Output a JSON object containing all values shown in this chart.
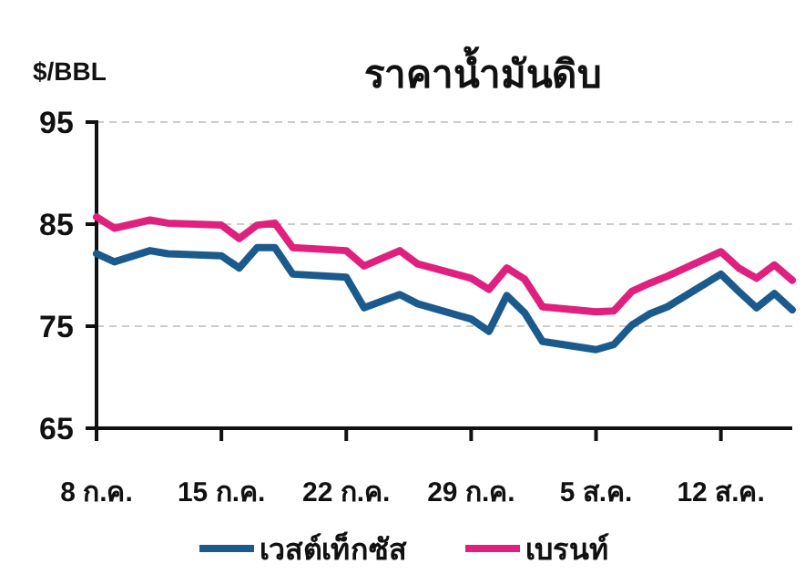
{
  "chart_data": {
    "type": "line",
    "title": "ราคาน้ำมันดิบ",
    "ylabel": "$/BBL",
    "xlim": [
      "--07-08",
      "--08-16"
    ],
    "ylim": [
      65,
      95
    ],
    "yticks": [
      65,
      75,
      85,
      95
    ],
    "xticks": [
      {
        "value": "--07-08",
        "label": "8 ก.ค."
      },
      {
        "value": "--07-15",
        "label": "15 ก.ค."
      },
      {
        "value": "--07-22",
        "label": "22 ก.ค."
      },
      {
        "value": "--07-29",
        "label": "29 ก.ค."
      },
      {
        "value": "--08-05",
        "label": "5 ส.ค."
      },
      {
        "value": "--08-12",
        "label": "12 ส.ค."
      }
    ],
    "x": [
      "--07-08",
      "--07-09",
      "--07-11",
      "--07-12",
      "--07-15",
      "--07-16",
      "--07-17",
      "--07-18",
      "--07-19",
      "--07-22",
      "--07-23",
      "--07-25",
      "--07-26",
      "--07-29",
      "--07-30",
      "--07-31",
      "--08-01",
      "--08-02",
      "--08-05",
      "--08-06",
      "--08-07",
      "--08-08",
      "--08-09",
      "--08-12",
      "--08-13",
      "--08-14",
      "--08-15",
      "--08-16"
    ],
    "series": [
      {
        "name": "เวสต์เท็กซัส",
        "color": "#1b5a8c",
        "values": [
          82.1,
          81.3,
          82.4,
          82.1,
          81.9,
          80.7,
          82.7,
          82.7,
          80.1,
          79.8,
          76.8,
          78.1,
          77.2,
          75.7,
          74.5,
          78.0,
          76.3,
          73.5,
          72.7,
          73.2,
          75.1,
          76.2,
          76.9,
          80.1,
          78.4,
          76.8,
          78.2,
          76.6
        ]
      },
      {
        "name": "เบรนท์",
        "color": "#e0207f",
        "values": [
          85.7,
          84.6,
          85.4,
          85.1,
          84.9,
          83.6,
          84.9,
          85.1,
          82.7,
          82.4,
          80.9,
          82.4,
          81.1,
          79.7,
          78.6,
          80.7,
          79.6,
          76.9,
          76.4,
          76.5,
          78.4,
          79.2,
          79.9,
          82.3,
          80.7,
          79.7,
          81.0,
          79.5
        ]
      }
    ],
    "grid": "y",
    "legend": "bottom",
    "marker": "none",
    "line_style": "solid"
  }
}
